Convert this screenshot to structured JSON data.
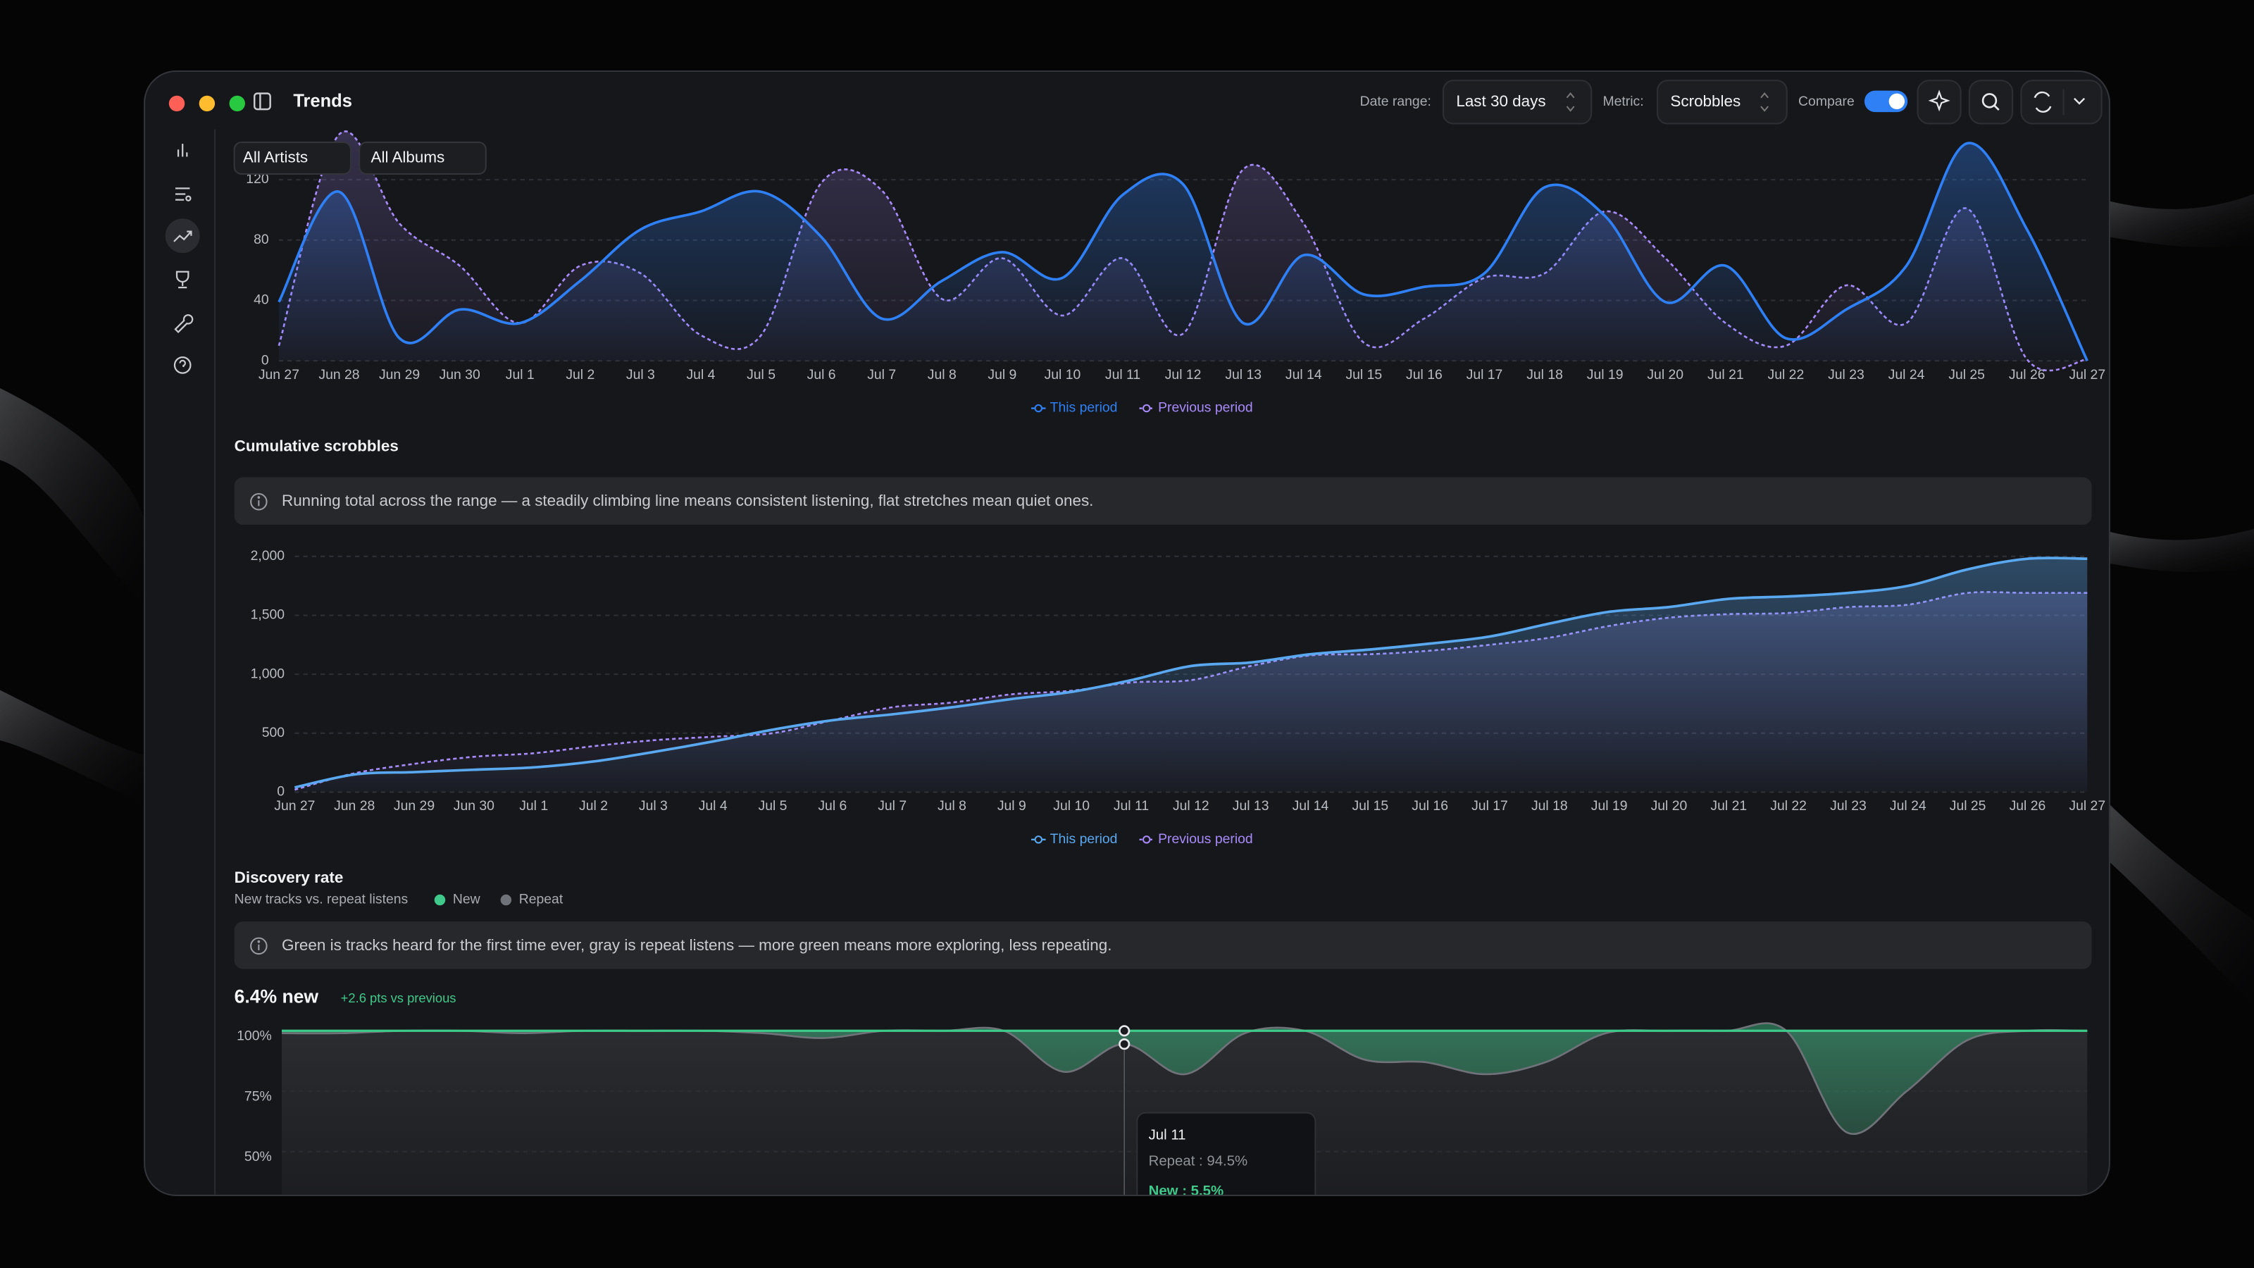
{
  "window": {
    "title": "Trends"
  },
  "toolbar": {
    "date_range_label": "Date range:",
    "date_range": "Last 30 days",
    "metric_label": "Metric:",
    "metric": "Scrobbles",
    "compare_label": "Compare"
  },
  "filters": [
    "All Artists",
    "All Albums"
  ],
  "trend_chart": {
    "type": "line",
    "categories": [
      "Jun 27",
      "Jun 28",
      "Jun 29",
      "Jun 30",
      "Jul 1",
      "Jul 2",
      "Jul 3",
      "Jul 4",
      "Jul 5",
      "Jul 6",
      "Jul 7",
      "Jul 8",
      "Jul 9",
      "Jul 10",
      "Jul 11",
      "Jul 12",
      "Jul 13",
      "Jul 14",
      "Jul 15",
      "Jul 16",
      "Jul 17",
      "Jul 18",
      "Jul 19",
      "Jul 20",
      "Jul 21",
      "Jul 22",
      "Jul 23",
      "Jul 24",
      "Jul 25",
      "Jul 26",
      "Jul 27"
    ],
    "series": [
      {
        "name": "This period",
        "color": "#2f80f5",
        "values": [
          39,
          112,
          15,
          34,
          25,
          53,
          87,
          99,
          112,
          82,
          28,
          53,
          72,
          55,
          110,
          117,
          25,
          70,
          44,
          49,
          58,
          115,
          96,
          39,
          63,
          15,
          34,
          63,
          144,
          87,
          0
        ]
      },
      {
        "name": "Previous period",
        "color": "#a78bfa",
        "values": [
          10,
          150,
          91,
          63,
          25,
          63,
          58,
          17,
          17,
          118,
          113,
          41,
          68,
          30,
          68,
          18,
          127,
          91,
          12,
          28,
          55,
          58,
          99,
          68,
          25,
          10,
          50,
          25,
          101,
          1,
          1
        ]
      }
    ],
    "ylim": [
      0,
      150
    ],
    "yticks": [
      0,
      40,
      80,
      120
    ],
    "grid": true
  },
  "cumulative": {
    "title": "Cumulative scrobbles",
    "info": "Running total across the range — a steadily climbing line means consistent listening, flat stretches mean quiet ones.",
    "chart": {
      "type": "line",
      "categories": [
        "Jun 27",
        "Jun 28",
        "Jun 29",
        "Jun 30",
        "Jul 1",
        "Jul 2",
        "Jul 3",
        "Jul 4",
        "Jul 5",
        "Jul 6",
        "Jul 7",
        "Jul 8",
        "Jul 9",
        "Jul 10",
        "Jul 11",
        "Jul 12",
        "Jul 13",
        "Jul 14",
        "Jul 15",
        "Jul 16",
        "Jul 17",
        "Jul 18",
        "Jul 19",
        "Jul 20",
        "Jul 21",
        "Jul 22",
        "Jul 23",
        "Jul 24",
        "Jul 25",
        "Jul 26",
        "Jul 27"
      ],
      "series": [
        {
          "name": "This period",
          "color": "#5aa9f0",
          "values": [
            40,
            150,
            170,
            190,
            210,
            260,
            340,
            430,
            530,
            610,
            660,
            720,
            790,
            850,
            950,
            1070,
            1100,
            1170,
            1210,
            1260,
            1320,
            1430,
            1530,
            1570,
            1640,
            1660,
            1690,
            1750,
            1890,
            1980,
            1980
          ]
        },
        {
          "name": "Previous period",
          "color": "#a78bfa",
          "values": [
            20,
            160,
            240,
            300,
            330,
            390,
            440,
            470,
            500,
            610,
            720,
            760,
            830,
            860,
            930,
            950,
            1070,
            1160,
            1170,
            1200,
            1250,
            1310,
            1410,
            1480,
            1510,
            1520,
            1570,
            1590,
            1690,
            1690,
            1690
          ]
        }
      ],
      "ylim": [
        0,
        2100
      ],
      "yticks": [
        0,
        500,
        {
          "value": 1000,
          "label": "1,000"
        },
        {
          "value": 1500,
          "label": "1,500"
        },
        {
          "value": 2000,
          "label": "2,000"
        }
      ],
      "grid": true
    }
  },
  "discovery": {
    "title": "Discovery rate",
    "subtitle": "New tracks vs. repeat listens",
    "info": "Green is tracks heard for the first time ever, gray is repeat listens — more green means more exploring, less repeating.",
    "headline": "6.4% new",
    "delta": "+2.6 pts vs previous",
    "chart": {
      "type": "area",
      "legend": [
        {
          "name": "New",
          "color": "#3fc98a"
        },
        {
          "name": "Repeat",
          "color": "#6f7278"
        }
      ],
      "values": [
        99,
        99,
        100,
        100,
        99,
        100,
        100,
        100,
        99,
        97,
        100,
        100,
        100,
        83,
        94.5,
        82,
        99,
        100,
        88,
        87,
        82,
        87,
        99,
        100,
        100,
        100,
        58,
        75,
        96,
        100,
        100
      ],
      "ylim": [
        0,
        100
      ],
      "yticks": [
        {
          "value": 100,
          "label": "100%"
        },
        {
          "value": 75,
          "label": "75%"
        },
        {
          "value": 50,
          "label": "50%"
        }
      ],
      "tooltip": {
        "index": 14,
        "title": "Jul 11",
        "repeat": "Repeat : 94.5%",
        "new": "New : 5.5%"
      }
    }
  }
}
